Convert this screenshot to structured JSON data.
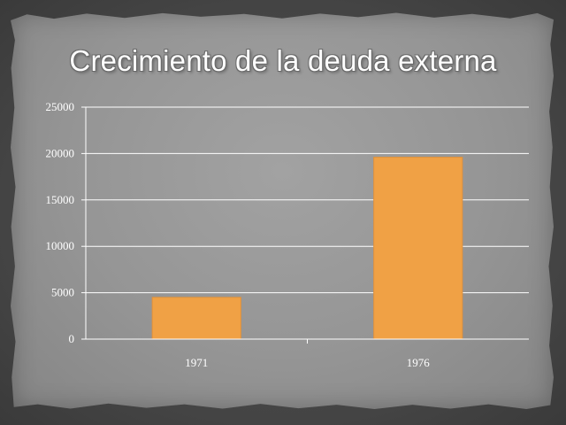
{
  "chart_data": {
    "type": "bar",
    "title": "Crecimiento de la deuda externa",
    "categories": [
      "1971",
      "1976"
    ],
    "values": [
      4500,
      19600
    ],
    "ylim": [
      0,
      25000
    ],
    "yticks": [
      "0",
      "5000",
      "10000",
      "15000",
      "20000",
      "25000"
    ],
    "grid": true,
    "bar_color": "#f0a145"
  }
}
